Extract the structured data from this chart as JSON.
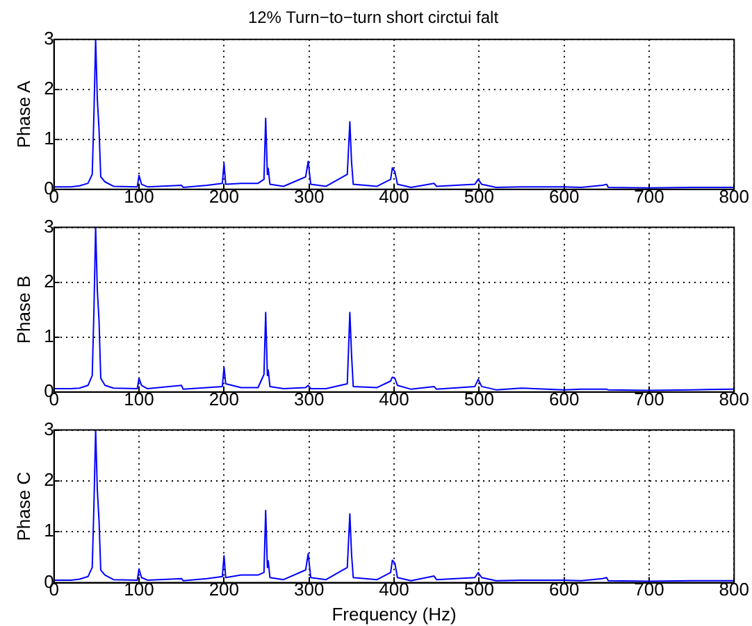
{
  "chart_data": [
    {
      "type": "line",
      "title": "12% Turn−to−turn short circtui falt",
      "ylabel": "Phase A",
      "marker": "none",
      "grid": true,
      "xlim": [
        0,
        800
      ],
      "ylim": [
        0,
        3
      ],
      "xticks": [
        0,
        100,
        200,
        300,
        400,
        500,
        600,
        700,
        800
      ],
      "yticks": [
        0,
        1,
        2,
        3
      ],
      "x": [
        0,
        20,
        30,
        40,
        45,
        47,
        49,
        51,
        53,
        55,
        60,
        70,
        98,
        100,
        103,
        110,
        150,
        152,
        180,
        198,
        200,
        202,
        220,
        240,
        247,
        249,
        251,
        252,
        254,
        270,
        296,
        299,
        302,
        320,
        345,
        348,
        350,
        352,
        380,
        396,
        398,
        401,
        404,
        420,
        447,
        450,
        495,
        499,
        503,
        520,
        550,
        600,
        620,
        645,
        650,
        652,
        700,
        750,
        800
      ],
      "series": [
        {
          "color": "#0000ff",
          "values": [
            0.05,
            0.05,
            0.07,
            0.12,
            0.3,
            1.5,
            3.0,
            1.8,
            1.2,
            0.25,
            0.15,
            0.06,
            0.05,
            0.28,
            0.1,
            0.05,
            0.08,
            0.04,
            0.08,
            0.12,
            0.52,
            0.1,
            0.12,
            0.12,
            0.2,
            1.42,
            0.3,
            0.42,
            0.1,
            0.06,
            0.25,
            0.56,
            0.1,
            0.06,
            0.3,
            1.35,
            0.55,
            0.1,
            0.06,
            0.2,
            0.43,
            0.35,
            0.1,
            0.04,
            0.12,
            0.06,
            0.1,
            0.2,
            0.1,
            0.04,
            0.05,
            0.05,
            0.04,
            0.08,
            0.1,
            0.04,
            0.03,
            0.04,
            0.04
          ]
        }
      ]
    },
    {
      "type": "line",
      "ylabel": "Phase B",
      "marker": "none",
      "grid": true,
      "xlim": [
        0,
        800
      ],
      "ylim": [
        0,
        3
      ],
      "xticks": [
        0,
        100,
        200,
        300,
        400,
        500,
        600,
        700,
        800
      ],
      "yticks": [
        0,
        1,
        2,
        3
      ],
      "x": [
        0,
        20,
        30,
        40,
        45,
        47,
        49,
        51,
        53,
        55,
        60,
        70,
        98,
        100,
        103,
        110,
        150,
        152,
        180,
        198,
        200,
        202,
        220,
        240,
        247,
        249,
        251,
        252,
        254,
        270,
        296,
        299,
        302,
        320,
        345,
        348,
        350,
        352,
        380,
        396,
        398,
        401,
        404,
        420,
        447,
        450,
        495,
        499,
        503,
        520,
        550,
        600,
        620,
        645,
        650,
        652,
        700,
        750,
        800
      ],
      "series": [
        {
          "color": "#0000ff",
          "values": [
            0.06,
            0.06,
            0.07,
            0.12,
            0.3,
            1.48,
            3.0,
            1.85,
            1.3,
            0.25,
            0.12,
            0.07,
            0.06,
            0.25,
            0.12,
            0.06,
            0.12,
            0.05,
            0.08,
            0.1,
            0.45,
            0.15,
            0.08,
            0.08,
            0.32,
            1.45,
            0.3,
            0.4,
            0.1,
            0.06,
            0.08,
            0.12,
            0.06,
            0.06,
            0.15,
            1.45,
            0.68,
            0.1,
            0.08,
            0.2,
            0.27,
            0.25,
            0.12,
            0.05,
            0.1,
            0.05,
            0.1,
            0.23,
            0.1,
            0.04,
            0.07,
            0.04,
            0.05,
            0.05,
            0.05,
            0.04,
            0.03,
            0.04,
            0.05
          ]
        }
      ]
    },
    {
      "type": "line",
      "ylabel": "Phase C",
      "xlabel": "Frequency (Hz)",
      "marker": "none",
      "grid": true,
      "xlim": [
        0,
        800
      ],
      "ylim": [
        0,
        3
      ],
      "xticks": [
        0,
        100,
        200,
        300,
        400,
        500,
        600,
        700,
        800
      ],
      "yticks": [
        0,
        1,
        2,
        3
      ],
      "x": [
        0,
        20,
        30,
        40,
        45,
        47,
        49,
        51,
        53,
        55,
        60,
        70,
        98,
        100,
        103,
        110,
        150,
        152,
        180,
        198,
        200,
        202,
        220,
        240,
        247,
        249,
        251,
        252,
        254,
        270,
        296,
        299,
        302,
        320,
        345,
        348,
        350,
        352,
        380,
        396,
        398,
        401,
        404,
        420,
        447,
        450,
        495,
        499,
        503,
        520,
        550,
        600,
        620,
        645,
        650,
        652,
        700,
        750,
        800
      ],
      "series": [
        {
          "color": "#0000ff",
          "values": [
            0.05,
            0.05,
            0.07,
            0.12,
            0.3,
            1.52,
            3.0,
            1.82,
            1.22,
            0.25,
            0.15,
            0.06,
            0.05,
            0.27,
            0.1,
            0.05,
            0.08,
            0.04,
            0.08,
            0.12,
            0.53,
            0.1,
            0.15,
            0.15,
            0.2,
            1.42,
            0.3,
            0.43,
            0.1,
            0.06,
            0.25,
            0.57,
            0.1,
            0.06,
            0.3,
            1.35,
            0.56,
            0.1,
            0.06,
            0.2,
            0.44,
            0.38,
            0.1,
            0.04,
            0.13,
            0.06,
            0.1,
            0.2,
            0.1,
            0.04,
            0.05,
            0.05,
            0.04,
            0.08,
            0.1,
            0.04,
            0.03,
            0.04,
            0.04
          ]
        }
      ]
    }
  ]
}
